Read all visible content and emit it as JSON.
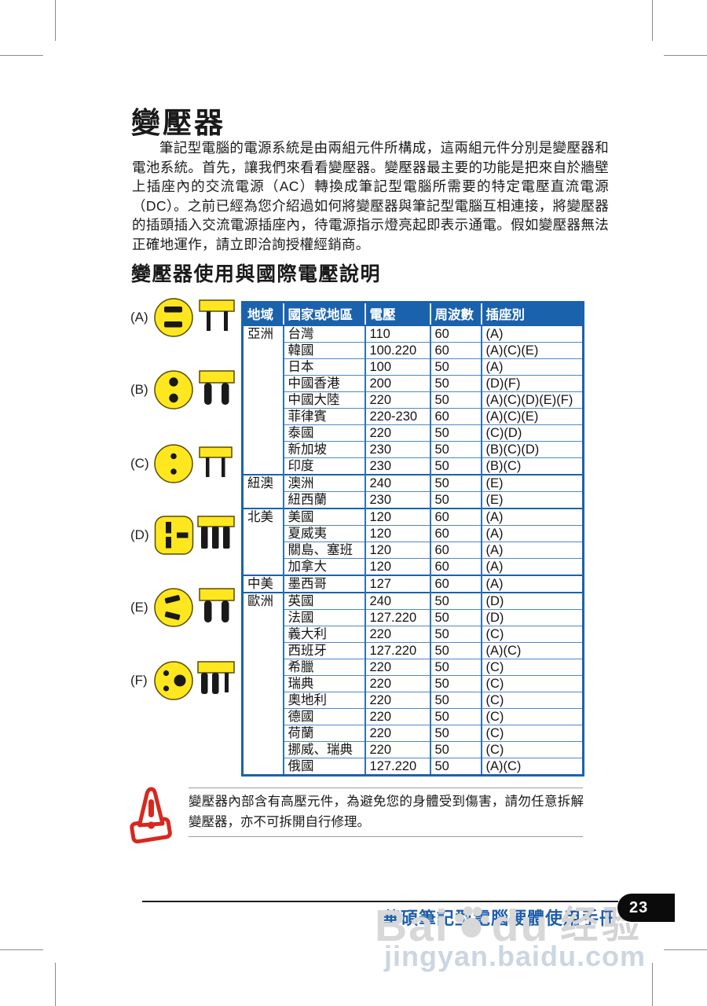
{
  "page": {
    "title": "變壓器",
    "intro": "筆記型電腦的電源系統是由兩組元件所構成，這兩組元件分別是變壓器和電池系統。首先，讓我們來看看變壓器。變壓器最主要的功能是把來自於牆壁上插座內的交流電源（AC）轉換成筆記型電腦所需要的特定電壓直流電源（DC）。之前已經為您介紹過如何將變壓器與筆記型電腦互相連接，將變壓器的插頭插入交流電源插座內，待電源指示燈亮起即表示通電。假如變壓器無法正確地運作，請立即洽詢授權經銷商。",
    "section_title": "變壓器使用與國際電壓說明",
    "note": "變壓器內部含有高壓元件，為避免您的身體受到傷害，請勿任意拆解變壓器，亦不可拆開自行修理。",
    "footer": {
      "manual_title": "華碩筆記型電腦硬體使用手冊",
      "page_number": "23"
    },
    "watermark": {
      "brand_left": "Bai",
      "brand_right": "du",
      "brand_suffix": "经验",
      "url": "jingyan.baidu.com"
    }
  },
  "figure": {
    "plugs": [
      {
        "id": "a",
        "label": "(A)",
        "icon": "plug-two-flat-blades"
      },
      {
        "id": "b",
        "label": "(B)",
        "icon": "plug-two-thick-round-pins"
      },
      {
        "id": "c",
        "label": "(C)",
        "icon": "plug-two-thin-round-pins"
      },
      {
        "id": "d",
        "label": "(D)",
        "icon": "plug-three-rectangular-prongs"
      },
      {
        "id": "e",
        "label": "(E)",
        "icon": "plug-two-angled-blades"
      },
      {
        "id": "f",
        "label": "(F)",
        "icon": "plug-three-round-pins"
      }
    ]
  },
  "table": {
    "headers": [
      "地域",
      "國家或地區",
      "電壓",
      "周波數",
      "插座別"
    ],
    "regions": [
      {
        "name": "亞洲",
        "rows": [
          [
            "台灣",
            "110",
            "60",
            "(A)"
          ],
          [
            "韓國",
            "100.220",
            "60",
            "(A)(C)(E)"
          ],
          [
            "日本",
            "100",
            "50",
            "(A)"
          ],
          [
            "中國香港",
            "200",
            "50",
            "(D)(F)"
          ],
          [
            "中國大陸",
            "220",
            "50",
            "(A)(C)(D)(E)(F)"
          ],
          [
            "菲律賓",
            "220-230",
            "60",
            "(A)(C)(E)"
          ],
          [
            "泰國",
            "220",
            "50",
            "(C)(D)"
          ],
          [
            "新加坡",
            "230",
            "50",
            "(B)(C)(D)"
          ],
          [
            "印度",
            "230",
            "50",
            "(B)(C)"
          ]
        ]
      },
      {
        "name": "紐澳",
        "rows": [
          [
            "澳洲",
            "240",
            "50",
            "(E)"
          ],
          [
            "紐西蘭",
            "230",
            "50",
            "(E)"
          ]
        ]
      },
      {
        "name": "北美",
        "rows": [
          [
            "美國",
            "120",
            "60",
            "(A)"
          ],
          [
            "夏威夷",
            "120",
            "60",
            "(A)"
          ],
          [
            "關島、塞班",
            "120",
            "60",
            "(A)"
          ],
          [
            "加拿大",
            "120",
            "60",
            "(A)"
          ]
        ]
      },
      {
        "name": "中美",
        "rows": [
          [
            "墨西哥",
            "127",
            "60",
            "(A)"
          ]
        ]
      },
      {
        "name": "歐洲",
        "rows": [
          [
            "英國",
            "240",
            "50",
            "(D)"
          ],
          [
            "法國",
            "127.220",
            "50",
            "(D)"
          ],
          [
            "義大利",
            "220",
            "50",
            "(C)"
          ],
          [
            "西班牙",
            "127.220",
            "50",
            "(A)(C)"
          ],
          [
            "希臘",
            "220",
            "50",
            "(C)"
          ],
          [
            "瑞典",
            "220",
            "50",
            "(C)"
          ],
          [
            "奧地利",
            "220",
            "50",
            "(C)"
          ],
          [
            "德國",
            "220",
            "50",
            "(C)"
          ],
          [
            "荷蘭",
            "220",
            "50",
            "(C)"
          ],
          [
            "挪威、瑞典",
            "220",
            "50",
            "(C)"
          ],
          [
            "俄國",
            "127.220",
            "50",
            "(A)(C)"
          ]
        ]
      }
    ]
  },
  "colors": {
    "table_blue": "#1b62ad",
    "inner_border_blue": "#4f88c6",
    "footer_blue": "#1e5dab",
    "warning_red": "#d7281f",
    "plug_yellow": "#ffe71f",
    "badge_black": "#0b0b0b",
    "watermark_gray": "#d8d8d8"
  }
}
